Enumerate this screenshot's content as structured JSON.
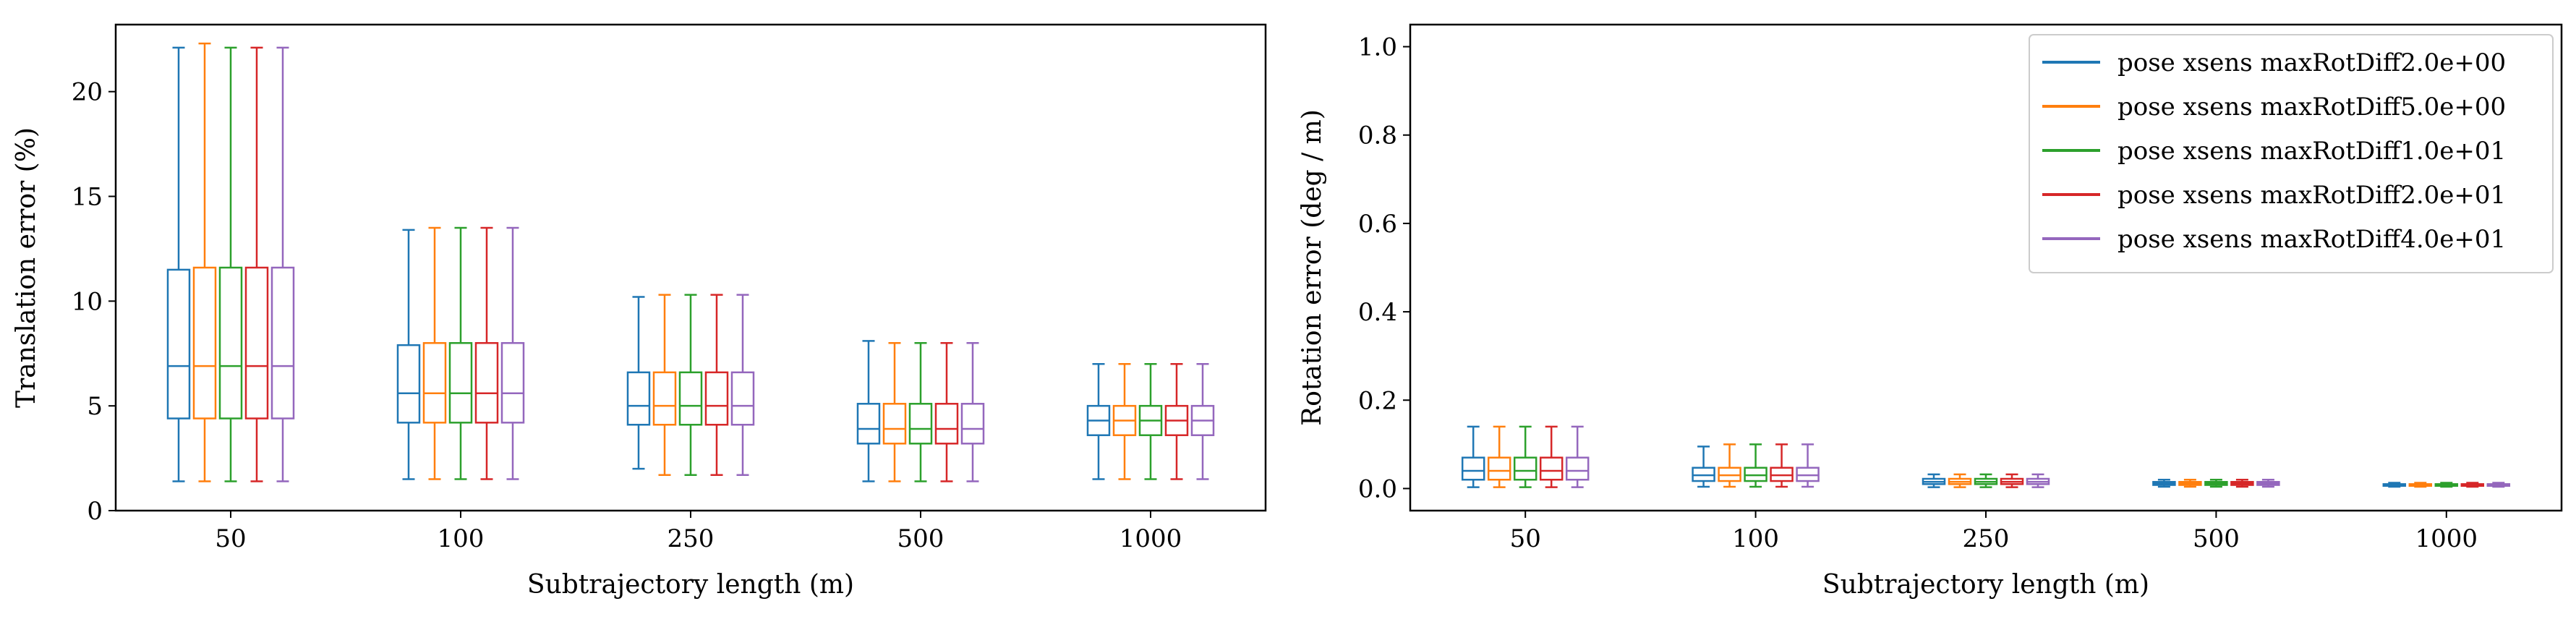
{
  "chart_data": [
    {
      "type": "box",
      "title": "",
      "xlabel": "Subtrajectory length (m)",
      "ylabel": "Translation error (%)",
      "categories": [
        "50",
        "100",
        "250",
        "500",
        "1000"
      ],
      "ylim": [
        0,
        23.2
      ],
      "yticks": [
        0,
        5,
        10,
        15,
        20
      ],
      "grid": false,
      "series": [
        {
          "color": "#1f77b4",
          "values": [
            {
              "min": 1.4,
              "q1": 4.4,
              "median": 6.9,
              "q3": 11.5,
              "max": 22.1
            },
            {
              "min": 1.5,
              "q1": 4.2,
              "median": 5.6,
              "q3": 7.9,
              "max": 13.4
            },
            {
              "min": 2.0,
              "q1": 4.1,
              "median": 5.0,
              "q3": 6.6,
              "max": 10.2
            },
            {
              "min": 1.4,
              "q1": 3.2,
              "median": 3.9,
              "q3": 5.1,
              "max": 8.1
            },
            {
              "min": 1.5,
              "q1": 3.6,
              "median": 4.3,
              "q3": 5.0,
              "max": 7.0
            }
          ]
        },
        {
          "color": "#ff7f0e",
          "values": [
            {
              "min": 1.4,
              "q1": 4.4,
              "median": 6.9,
              "q3": 11.6,
              "max": 22.3
            },
            {
              "min": 1.5,
              "q1": 4.2,
              "median": 5.6,
              "q3": 8.0,
              "max": 13.5
            },
            {
              "min": 1.7,
              "q1": 4.1,
              "median": 5.0,
              "q3": 6.6,
              "max": 10.3
            },
            {
              "min": 1.4,
              "q1": 3.2,
              "median": 3.9,
              "q3": 5.1,
              "max": 8.0
            },
            {
              "min": 1.5,
              "q1": 3.6,
              "median": 4.3,
              "q3": 5.0,
              "max": 7.0
            }
          ]
        },
        {
          "color": "#2ca02c",
          "values": [
            {
              "min": 1.4,
              "q1": 4.4,
              "median": 6.9,
              "q3": 11.6,
              "max": 22.1
            },
            {
              "min": 1.5,
              "q1": 4.2,
              "median": 5.6,
              "q3": 8.0,
              "max": 13.5
            },
            {
              "min": 1.7,
              "q1": 4.1,
              "median": 5.0,
              "q3": 6.6,
              "max": 10.3
            },
            {
              "min": 1.4,
              "q1": 3.2,
              "median": 3.9,
              "q3": 5.1,
              "max": 8.0
            },
            {
              "min": 1.5,
              "q1": 3.6,
              "median": 4.3,
              "q3": 5.0,
              "max": 7.0
            }
          ]
        },
        {
          "color": "#d62728",
          "values": [
            {
              "min": 1.4,
              "q1": 4.4,
              "median": 6.9,
              "q3": 11.6,
              "max": 22.1
            },
            {
              "min": 1.5,
              "q1": 4.2,
              "median": 5.6,
              "q3": 8.0,
              "max": 13.5
            },
            {
              "min": 1.7,
              "q1": 4.1,
              "median": 5.0,
              "q3": 6.6,
              "max": 10.3
            },
            {
              "min": 1.4,
              "q1": 3.2,
              "median": 3.9,
              "q3": 5.1,
              "max": 8.0
            },
            {
              "min": 1.5,
              "q1": 3.6,
              "median": 4.3,
              "q3": 5.0,
              "max": 7.0
            }
          ]
        },
        {
          "color": "#9467bd",
          "values": [
            {
              "min": 1.4,
              "q1": 4.4,
              "median": 6.9,
              "q3": 11.6,
              "max": 22.1
            },
            {
              "min": 1.5,
              "q1": 4.2,
              "median": 5.6,
              "q3": 8.0,
              "max": 13.5
            },
            {
              "min": 1.7,
              "q1": 4.1,
              "median": 5.0,
              "q3": 6.6,
              "max": 10.3
            },
            {
              "min": 1.4,
              "q1": 3.2,
              "median": 3.9,
              "q3": 5.1,
              "max": 8.0
            },
            {
              "min": 1.5,
              "q1": 3.6,
              "median": 4.3,
              "q3": 5.0,
              "max": 7.0
            }
          ]
        }
      ]
    },
    {
      "type": "box",
      "title": "",
      "xlabel": "Subtrajectory length (m)",
      "ylabel": "Rotation error (deg / m)",
      "categories": [
        "50",
        "100",
        "250",
        "500",
        "1000"
      ],
      "ylim": [
        -0.05,
        1.05
      ],
      "yticks": [
        0.0,
        0.2,
        0.4,
        0.6,
        0.8,
        1.0
      ],
      "grid": false,
      "legend_position": "top-right",
      "series": [
        {
          "name": "pose xsens maxRotDiff2.0e+00",
          "color": "#1f77b4",
          "values": [
            {
              "min": 0.003,
              "q1": 0.02,
              "median": 0.04,
              "q3": 0.07,
              "max": 0.14
            },
            {
              "min": 0.004,
              "q1": 0.017,
              "median": 0.03,
              "q3": 0.047,
              "max": 0.095
            },
            {
              "min": 0.003,
              "q1": 0.01,
              "median": 0.015,
              "q3": 0.022,
              "max": 0.032
            },
            {
              "min": 0.004,
              "q1": 0.008,
              "median": 0.011,
              "q3": 0.015,
              "max": 0.02
            },
            {
              "min": 0.004,
              "q1": 0.006,
              "median": 0.008,
              "q3": 0.01,
              "max": 0.013
            }
          ]
        },
        {
          "name": "pose xsens maxRotDiff5.0e+00",
          "color": "#ff7f0e",
          "values": [
            {
              "min": 0.003,
              "q1": 0.02,
              "median": 0.04,
              "q3": 0.07,
              "max": 0.14
            },
            {
              "min": 0.004,
              "q1": 0.017,
              "median": 0.03,
              "q3": 0.047,
              "max": 0.1
            },
            {
              "min": 0.003,
              "q1": 0.01,
              "median": 0.015,
              "q3": 0.022,
              "max": 0.032
            },
            {
              "min": 0.004,
              "q1": 0.008,
              "median": 0.011,
              "q3": 0.015,
              "max": 0.02
            },
            {
              "min": 0.004,
              "q1": 0.006,
              "median": 0.008,
              "q3": 0.01,
              "max": 0.013
            }
          ]
        },
        {
          "name": "pose xsens maxRotDiff1.0e+01",
          "color": "#2ca02c",
          "values": [
            {
              "min": 0.003,
              "q1": 0.02,
              "median": 0.04,
              "q3": 0.07,
              "max": 0.14
            },
            {
              "min": 0.004,
              "q1": 0.017,
              "median": 0.03,
              "q3": 0.047,
              "max": 0.1
            },
            {
              "min": 0.003,
              "q1": 0.01,
              "median": 0.015,
              "q3": 0.022,
              "max": 0.032
            },
            {
              "min": 0.004,
              "q1": 0.008,
              "median": 0.011,
              "q3": 0.015,
              "max": 0.02
            },
            {
              "min": 0.004,
              "q1": 0.006,
              "median": 0.008,
              "q3": 0.01,
              "max": 0.013
            }
          ]
        },
        {
          "name": "pose xsens maxRotDiff2.0e+01",
          "color": "#d62728",
          "values": [
            {
              "min": 0.003,
              "q1": 0.02,
              "median": 0.04,
              "q3": 0.07,
              "max": 0.14
            },
            {
              "min": 0.004,
              "q1": 0.017,
              "median": 0.03,
              "q3": 0.047,
              "max": 0.1
            },
            {
              "min": 0.003,
              "q1": 0.01,
              "median": 0.015,
              "q3": 0.022,
              "max": 0.032
            },
            {
              "min": 0.004,
              "q1": 0.008,
              "median": 0.011,
              "q3": 0.015,
              "max": 0.02
            },
            {
              "min": 0.004,
              "q1": 0.006,
              "median": 0.008,
              "q3": 0.01,
              "max": 0.013
            }
          ]
        },
        {
          "name": "pose xsens maxRotDiff4.0e+01",
          "color": "#9467bd",
          "values": [
            {
              "min": 0.003,
              "q1": 0.02,
              "median": 0.04,
              "q3": 0.07,
              "max": 0.14
            },
            {
              "min": 0.004,
              "q1": 0.017,
              "median": 0.03,
              "q3": 0.047,
              "max": 0.1
            },
            {
              "min": 0.003,
              "q1": 0.01,
              "median": 0.015,
              "q3": 0.022,
              "max": 0.032
            },
            {
              "min": 0.004,
              "q1": 0.008,
              "median": 0.011,
              "q3": 0.015,
              "max": 0.02
            },
            {
              "min": 0.004,
              "q1": 0.006,
              "median": 0.008,
              "q3": 0.01,
              "max": 0.013
            }
          ]
        }
      ]
    }
  ]
}
